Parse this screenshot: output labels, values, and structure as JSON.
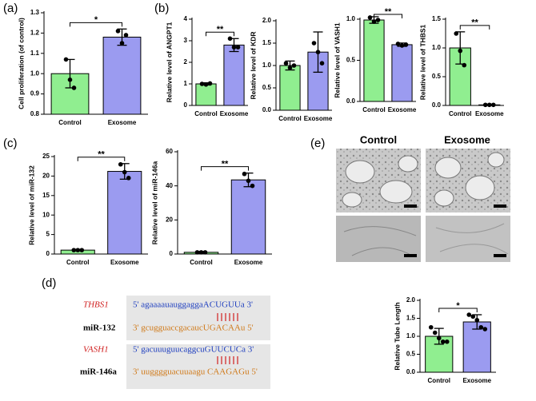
{
  "panel_labels": [
    "(a)",
    "(b)",
    "(c)",
    "(d)",
    "(e)"
  ],
  "chart_data": [
    {
      "type": "bar",
      "ylabel": "Cell proliferation (of control)",
      "categories": [
        "Control",
        "Exosome"
      ],
      "values": [
        1.0,
        1.18
      ],
      "errors": [
        0.07,
        0.04
      ],
      "points": [
        [
          1.07,
          0.97,
          0.93
        ],
        [
          1.21,
          1.15,
          1.19
        ]
      ],
      "colors": [
        "#90ee90",
        "#9b9bf0"
      ],
      "ylim": [
        0.8,
        1.3
      ],
      "yticks": [
        0.8,
        0.9,
        {
          "value": 1,
          "label": "1.0"
        },
        1.1,
        1.2,
        1.3
      ],
      "annotation": "*"
    },
    {
      "type": "bar",
      "ylabel": "Relative level of ANGPT1",
      "categories": [
        "Control",
        "Exosome"
      ],
      "values": [
        1.0,
        2.8
      ],
      "errors": [
        0.05,
        0.3
      ],
      "points": [
        [
          1.0,
          0.97,
          1.02
        ],
        [
          3.1,
          2.7,
          2.7
        ]
      ],
      "colors": [
        "#90ee90",
        "#9b9bf0"
      ],
      "ylim": [
        0,
        4
      ],
      "yticks": [
        0,
        1,
        2,
        3,
        4
      ],
      "annotation": "**"
    },
    {
      "type": "bar",
      "ylabel": "Relative level of KDR",
      "categories": [
        "Control",
        "Exosome"
      ],
      "values": [
        1.0,
        1.3
      ],
      "errors": [
        0.1,
        0.45
      ],
      "points": [
        [
          1.05,
          0.95,
          1.0
        ],
        [
          1.5,
          1.3,
          1.05
        ]
      ],
      "colors": [
        "#90ee90",
        "#9b9bf0"
      ],
      "ylim": [
        0,
        2
      ],
      "yticks": [
        {
          "value": 0,
          "label": "0.0"
        },
        0.5,
        {
          "value": 1,
          "label": "1.0"
        },
        1.5,
        {
          "value": 2,
          "label": "2.0"
        }
      ]
    },
    {
      "type": "bar",
      "ylabel": "Relative level of VASH1",
      "categories": [
        "Control",
        "Exosome"
      ],
      "values": [
        0.99,
        0.69
      ],
      "errors": [
        0.04,
        0.02
      ],
      "points": [
        [
          1.02,
          0.97,
          0.99
        ],
        [
          0.7,
          0.68,
          0.69
        ]
      ],
      "colors": [
        "#90ee90",
        "#9b9bf0"
      ],
      "ylim": [
        0,
        1
      ],
      "yticks": [
        {
          "value": 0,
          "label": "0.0"
        },
        0.5,
        {
          "value": 1,
          "label": "1.0"
        }
      ],
      "annotation": "**"
    },
    {
      "type": "bar",
      "ylabel": "Relative level of THBS1",
      "categories": [
        "Control",
        "Exosome"
      ],
      "values": [
        1.0,
        0.01
      ],
      "errors": [
        0.28,
        0.01
      ],
      "points": [
        [
          1.25,
          0.95,
          0.7
        ],
        [
          0.01,
          0.01,
          0.01
        ]
      ],
      "colors": [
        "#90ee90",
        "#9b9bf0"
      ],
      "ylim": [
        0,
        1.5
      ],
      "yticks": [
        {
          "value": 0,
          "label": "0.0"
        },
        0.5,
        {
          "value": 1,
          "label": "1.0"
        },
        1.5
      ],
      "annotation": "**"
    },
    {
      "type": "bar",
      "ylabel": "Relative level of miR-132",
      "categories": [
        "Control",
        "Exosome"
      ],
      "values": [
        1.0,
        21.2
      ],
      "errors": [
        0.2,
        2.0
      ],
      "points": [
        [
          1.0,
          1.0,
          1.0
        ],
        [
          23.0,
          21.0,
          19.5
        ]
      ],
      "colors": [
        "#90ee90",
        "#9b9bf0"
      ],
      "ylim": [
        0,
        25
      ],
      "yticks": [
        0,
        5,
        10,
        15,
        20,
        25
      ],
      "annotation": "**"
    },
    {
      "type": "bar",
      "ylabel": "Relative level of miR-146a",
      "categories": [
        "Control",
        "Exosome"
      ],
      "values": [
        1.0,
        43.5
      ],
      "errors": [
        0.5,
        4.0
      ],
      "points": [
        [
          1.0,
          1.0,
          1.0
        ],
        [
          47.0,
          43.0,
          40.0
        ]
      ],
      "colors": [
        "#90ee90",
        "#9b9bf0"
      ],
      "ylim": [
        0,
        60
      ],
      "yticks": [
        0,
        20,
        40,
        60
      ],
      "annotation": "**"
    },
    {
      "type": "bar",
      "ylabel": "Relative Tube Length",
      "categories": [
        "Control",
        "Exosome"
      ],
      "values": [
        1.0,
        1.4
      ],
      "errors": [
        0.22,
        0.2
      ],
      "points": [
        [
          1.25,
          1.1,
          0.95,
          0.85,
          0.85
        ],
        [
          1.6,
          1.55,
          1.45,
          1.25,
          1.2
        ]
      ],
      "colors": [
        "#90ee90",
        "#9b9bf0"
      ],
      "ylim": [
        0,
        2
      ],
      "yticks": [
        {
          "value": 0,
          "label": "0.0"
        },
        0.5,
        {
          "value": 1,
          "label": "1.0"
        },
        1.5,
        {
          "value": 2,
          "label": "2.0"
        }
      ],
      "annotation": "*"
    }
  ],
  "sequences": [
    {
      "gene": "THBS1",
      "target": "5' agaaaauauggaggaACUGUUa 3'",
      "mirna": "miR-132",
      "mirna_seq": "3' gcugguaccgacaucUGACAAu 5'"
    },
    {
      "gene": "VASH1",
      "target": "5' gacuuuguucaggcuGUUCUCa 3'",
      "mirna": "miR-146a",
      "mirna_seq": "3' uugggguacuuaagu CAAGAGu 5'"
    }
  ],
  "images": {
    "columns": [
      "Control",
      "Exosome"
    ]
  }
}
